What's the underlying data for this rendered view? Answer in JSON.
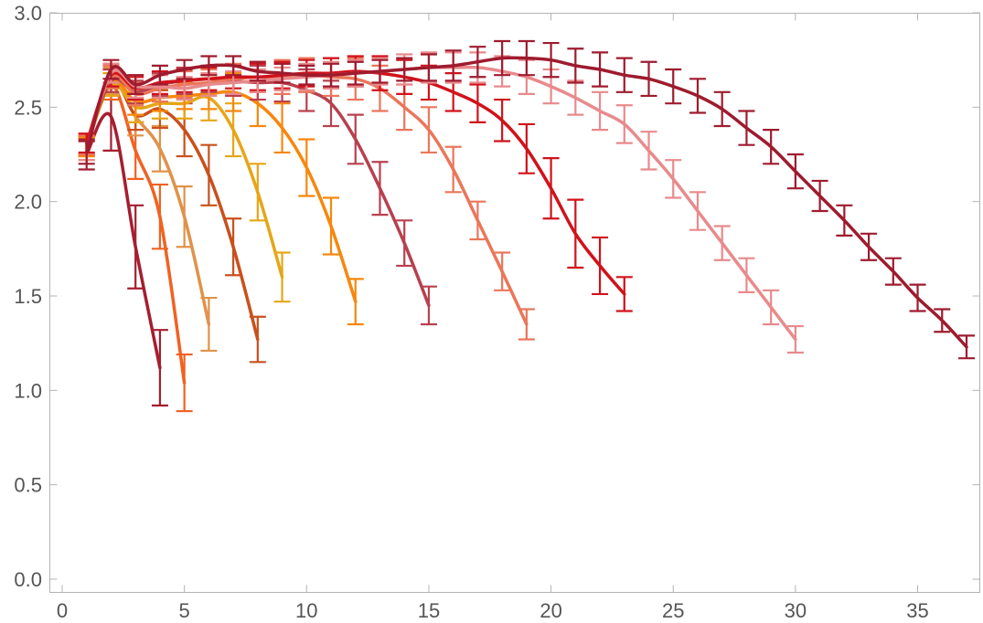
{
  "chart_data": {
    "type": "line",
    "title": "",
    "xlabel": "",
    "ylabel": "",
    "xlim": [
      0,
      37.5
    ],
    "ylim": [
      0,
      3.0
    ],
    "grid": false,
    "legend": "none",
    "x_ticks": [
      0,
      5,
      10,
      15,
      20,
      25,
      30,
      35
    ],
    "y_ticks": [
      0.0,
      0.5,
      1.0,
      1.5,
      2.0,
      2.5,
      3.0
    ],
    "x_tick_labels": [
      "0",
      "5",
      "10",
      "15",
      "20",
      "25",
      "30",
      "35"
    ],
    "y_tick_labels": [
      "0.0",
      "0.5",
      "1.0",
      "1.5",
      "2.0",
      "2.5",
      "3.0"
    ],
    "series": [
      {
        "color": "#a51e30",
        "x": [
          1,
          2,
          3,
          4
        ],
        "y": [
          2.25,
          2.45,
          1.76,
          1.12
        ],
        "err": [
          0.08,
          0.18,
          0.22,
          0.2
        ]
      },
      {
        "color": "#f06222",
        "x": [
          1,
          2,
          3,
          4,
          5
        ],
        "y": [
          2.28,
          2.62,
          2.27,
          1.92,
          1.04
        ],
        "err": [
          0.06,
          0.08,
          0.15,
          0.17,
          0.15
        ]
      },
      {
        "color": "#e0924a",
        "x": [
          1,
          2,
          3,
          4,
          5,
          6
        ],
        "y": [
          2.29,
          2.64,
          2.45,
          2.28,
          1.92,
          1.35
        ],
        "err": [
          0.05,
          0.07,
          0.1,
          0.12,
          0.16,
          0.14
        ]
      },
      {
        "color": "#c9501c",
        "x": [
          1,
          2,
          3,
          4,
          5,
          6,
          7,
          8
        ],
        "y": [
          2.3,
          2.66,
          2.46,
          2.49,
          2.38,
          2.14,
          1.76,
          1.27
        ],
        "err": [
          0.05,
          0.06,
          0.08,
          0.1,
          0.14,
          0.16,
          0.15,
          0.12
        ]
      },
      {
        "color": "#e5a617",
        "x": [
          1,
          2,
          3,
          4,
          5,
          6,
          7,
          8,
          9
        ],
        "y": [
          2.29,
          2.62,
          2.5,
          2.52,
          2.52,
          2.55,
          2.38,
          2.05,
          1.6
        ],
        "err": [
          0.05,
          0.06,
          0.08,
          0.08,
          0.08,
          0.12,
          0.14,
          0.15,
          0.13
        ]
      },
      {
        "color": "#f7870d",
        "x": [
          1,
          2,
          3,
          4,
          5,
          6,
          7,
          8,
          9,
          10,
          11,
          12
        ],
        "y": [
          2.29,
          2.64,
          2.53,
          2.55,
          2.56,
          2.57,
          2.58,
          2.52,
          2.39,
          2.18,
          1.87,
          1.47
        ],
        "err": [
          0.05,
          0.06,
          0.07,
          0.07,
          0.07,
          0.08,
          0.1,
          0.12,
          0.13,
          0.15,
          0.15,
          0.12
        ]
      },
      {
        "color": "#b8404e",
        "x": [
          1,
          2,
          3,
          4,
          5,
          6,
          7,
          8,
          9,
          10,
          11,
          12,
          13,
          14,
          15
        ],
        "y": [
          2.3,
          2.64,
          2.58,
          2.62,
          2.64,
          2.65,
          2.64,
          2.63,
          2.63,
          2.59,
          2.52,
          2.33,
          2.07,
          1.78,
          1.45
        ],
        "err": [
          0.05,
          0.06,
          0.06,
          0.06,
          0.07,
          0.07,
          0.08,
          0.09,
          0.1,
          0.11,
          0.12,
          0.13,
          0.14,
          0.12,
          0.1
        ]
      },
      {
        "color": "#eb765a",
        "x": [
          1,
          2,
          3,
          4,
          5,
          6,
          7,
          8,
          9,
          10,
          11,
          12,
          13,
          14,
          15,
          16,
          17,
          18,
          19
        ],
        "y": [
          2.3,
          2.66,
          2.57,
          2.6,
          2.62,
          2.63,
          2.65,
          2.66,
          2.66,
          2.67,
          2.66,
          2.65,
          2.6,
          2.5,
          2.38,
          2.17,
          1.9,
          1.63,
          1.35
        ],
        "err": [
          0.05,
          0.06,
          0.06,
          0.07,
          0.07,
          0.07,
          0.08,
          0.08,
          0.09,
          0.09,
          0.1,
          0.11,
          0.12,
          0.12,
          0.12,
          0.12,
          0.1,
          0.1,
          0.08
        ]
      },
      {
        "color": "#d1121a",
        "x": [
          1,
          2,
          3,
          4,
          5,
          6,
          7,
          8,
          9,
          10,
          11,
          12,
          13,
          14,
          15,
          16,
          17,
          18,
          19,
          20,
          21,
          22,
          23
        ],
        "y": [
          2.31,
          2.67,
          2.6,
          2.63,
          2.64,
          2.65,
          2.66,
          2.66,
          2.67,
          2.68,
          2.68,
          2.69,
          2.68,
          2.66,
          2.63,
          2.58,
          2.52,
          2.43,
          2.28,
          2.07,
          1.83,
          1.66,
          1.51
        ],
        "err": [
          0.05,
          0.06,
          0.06,
          0.06,
          0.06,
          0.06,
          0.06,
          0.07,
          0.07,
          0.07,
          0.08,
          0.08,
          0.09,
          0.09,
          0.09,
          0.1,
          0.1,
          0.11,
          0.13,
          0.16,
          0.18,
          0.15,
          0.09
        ]
      },
      {
        "color": "#e88a8c",
        "x": [
          1,
          2,
          3,
          4,
          5,
          6,
          7,
          8,
          9,
          10,
          11,
          12,
          13,
          14,
          15,
          16,
          17,
          18,
          19,
          20,
          21,
          22,
          23,
          24,
          25,
          26,
          27,
          28,
          29,
          30
        ],
        "y": [
          2.27,
          2.68,
          2.61,
          2.61,
          2.6,
          2.62,
          2.63,
          2.64,
          2.65,
          2.66,
          2.67,
          2.68,
          2.69,
          2.7,
          2.71,
          2.71,
          2.71,
          2.69,
          2.66,
          2.61,
          2.55,
          2.48,
          2.41,
          2.27,
          2.12,
          1.95,
          1.78,
          1.61,
          1.44,
          1.27
        ],
        "err": [
          0.05,
          0.05,
          0.06,
          0.06,
          0.06,
          0.06,
          0.06,
          0.06,
          0.06,
          0.07,
          0.07,
          0.07,
          0.07,
          0.08,
          0.08,
          0.08,
          0.08,
          0.08,
          0.09,
          0.09,
          0.09,
          0.1,
          0.1,
          0.1,
          0.1,
          0.1,
          0.09,
          0.09,
          0.09,
          0.07
        ]
      },
      {
        "color": "#9e1b2e",
        "x": [
          1,
          2,
          3,
          4,
          5,
          6,
          7,
          8,
          9,
          10,
          11,
          12,
          13,
          14,
          15,
          16,
          17,
          18,
          19,
          20,
          21,
          22,
          23,
          24,
          25,
          26,
          27,
          28,
          29,
          30,
          31,
          32,
          33,
          34,
          35,
          36,
          37
        ],
        "y": [
          2.26,
          2.7,
          2.62,
          2.67,
          2.7,
          2.72,
          2.72,
          2.69,
          2.68,
          2.67,
          2.67,
          2.68,
          2.69,
          2.7,
          2.71,
          2.72,
          2.74,
          2.76,
          2.76,
          2.75,
          2.72,
          2.7,
          2.67,
          2.65,
          2.61,
          2.56,
          2.49,
          2.39,
          2.29,
          2.16,
          2.03,
          1.9,
          1.76,
          1.63,
          1.49,
          1.37,
          1.23
        ],
        "err": [
          0.06,
          0.05,
          0.05,
          0.05,
          0.05,
          0.05,
          0.05,
          0.05,
          0.05,
          0.05,
          0.06,
          0.06,
          0.06,
          0.06,
          0.07,
          0.08,
          0.08,
          0.09,
          0.09,
          0.09,
          0.09,
          0.09,
          0.09,
          0.09,
          0.09,
          0.09,
          0.09,
          0.09,
          0.09,
          0.09,
          0.08,
          0.08,
          0.07,
          0.07,
          0.07,
          0.06,
          0.06
        ]
      }
    ]
  }
}
